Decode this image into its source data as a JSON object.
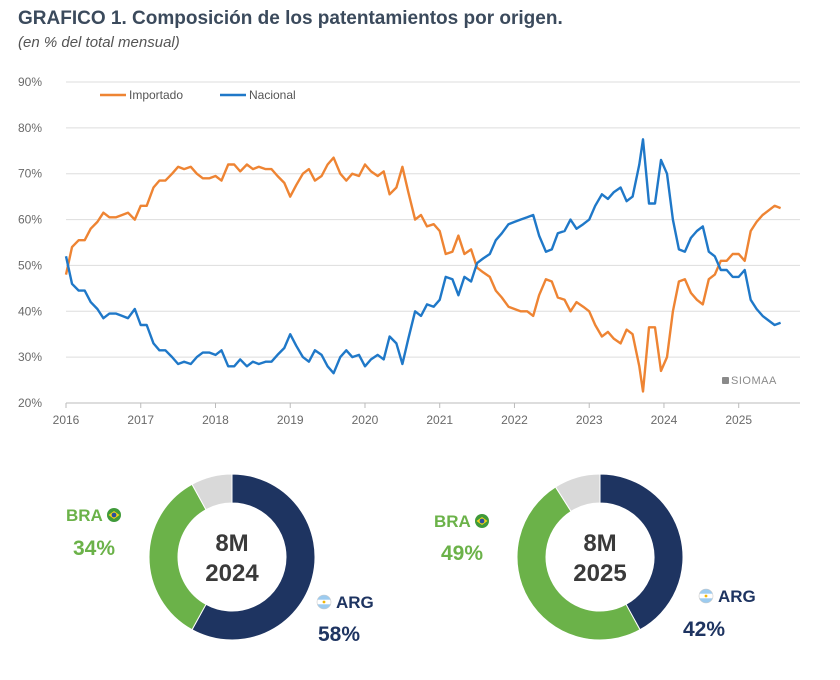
{
  "header": {
    "title": "GRAFICO 1. Composición de los patentamientos por origen.",
    "subtitle": "(en % del total mensual)"
  },
  "watermark": "SIOMAA",
  "colors": {
    "importado": "#ee8433",
    "nacional": "#1f78c8",
    "bra": "#6bb249",
    "arg": "#1e3461",
    "otros": "#d9d9d9",
    "grid": "#dddddd"
  },
  "chart_data": [
    {
      "type": "line",
      "title": "GRAFICO 1. Composición de los patentamientos por origen.",
      "subtitle": "(en % del total mensual)",
      "ylim": [
        20,
        90
      ],
      "y_ticks": [
        "20%",
        "30%",
        "40%",
        "50%",
        "60%",
        "70%",
        "80%",
        "90%"
      ],
      "x_ticks": [
        "2016",
        "2017",
        "2018",
        "2019",
        "2020",
        "2021",
        "2022",
        "2023",
        "2024",
        "2025"
      ],
      "grid": true,
      "legend_position": "top-left",
      "series": [
        {
          "name": "Importado",
          "points": [
            [
              2016.0,
              48
            ],
            [
              2016.08,
              54
            ],
            [
              2016.17,
              55.5
            ],
            [
              2016.25,
              55.5
            ],
            [
              2016.33,
              58
            ],
            [
              2016.42,
              59.5
            ],
            [
              2016.5,
              61.5
            ],
            [
              2016.58,
              60.5
            ],
            [
              2016.67,
              60.5
            ],
            [
              2016.75,
              61
            ],
            [
              2016.83,
              61.5
            ],
            [
              2016.92,
              60
            ],
            [
              2017.0,
              63
            ],
            [
              2017.08,
              63
            ],
            [
              2017.17,
              67
            ],
            [
              2017.25,
              68.5
            ],
            [
              2017.33,
              68.5
            ],
            [
              2017.42,
              70
            ],
            [
              2017.5,
              71.5
            ],
            [
              2017.58,
              71
            ],
            [
              2017.67,
              71.5
            ],
            [
              2017.75,
              70
            ],
            [
              2017.83,
              69
            ],
            [
              2017.92,
              69
            ],
            [
              2018.0,
              69.5
            ],
            [
              2018.08,
              68.5
            ],
            [
              2018.17,
              72
            ],
            [
              2018.25,
              72
            ],
            [
              2018.33,
              70.5
            ],
            [
              2018.42,
              72
            ],
            [
              2018.5,
              71
            ],
            [
              2018.58,
              71.5
            ],
            [
              2018.67,
              71
            ],
            [
              2018.75,
              71
            ],
            [
              2018.83,
              69.5
            ],
            [
              2018.92,
              68
            ],
            [
              2019.0,
              65
            ],
            [
              2019.08,
              67.5
            ],
            [
              2019.17,
              70
            ],
            [
              2019.25,
              71
            ],
            [
              2019.33,
              68.5
            ],
            [
              2019.42,
              69.5
            ],
            [
              2019.5,
              72
            ],
            [
              2019.58,
              73.5
            ],
            [
              2019.67,
              70
            ],
            [
              2019.75,
              68.5
            ],
            [
              2019.83,
              70
            ],
            [
              2019.92,
              69.5
            ],
            [
              2020.0,
              72
            ],
            [
              2020.08,
              70.5
            ],
            [
              2020.17,
              69.5
            ],
            [
              2020.25,
              70.5
            ],
            [
              2020.33,
              65.5
            ],
            [
              2020.42,
              67
            ],
            [
              2020.5,
              71.5
            ],
            [
              2020.58,
              66
            ],
            [
              2020.67,
              60
            ],
            [
              2020.75,
              61
            ],
            [
              2020.83,
              58.5
            ],
            [
              2020.92,
              59
            ],
            [
              2021.0,
              57.5
            ],
            [
              2021.08,
              52.5
            ],
            [
              2021.17,
              53
            ],
            [
              2021.25,
              56.5
            ],
            [
              2021.33,
              52.5
            ],
            [
              2021.42,
              53.5
            ],
            [
              2021.5,
              49.5
            ],
            [
              2021.58,
              48.5
            ],
            [
              2021.67,
              47.5
            ],
            [
              2021.75,
              44.5
            ],
            [
              2021.83,
              43
            ],
            [
              2021.92,
              41
            ],
            [
              2022.0,
              40.5
            ],
            [
              2022.08,
              40
            ],
            [
              2022.17,
              40
            ],
            [
              2022.25,
              39
            ],
            [
              2022.33,
              43.5
            ],
            [
              2022.42,
              47
            ],
            [
              2022.5,
              46.5
            ],
            [
              2022.58,
              43
            ],
            [
              2022.67,
              42.5
            ],
            [
              2022.75,
              40
            ],
            [
              2022.83,
              42
            ],
            [
              2022.92,
              41
            ],
            [
              2023.0,
              40
            ],
            [
              2023.08,
              37
            ],
            [
              2023.17,
              34.5
            ],
            [
              2023.25,
              35.5
            ],
            [
              2023.33,
              34
            ],
            [
              2023.42,
              33
            ],
            [
              2023.5,
              36
            ],
            [
              2023.58,
              35
            ],
            [
              2023.67,
              28
            ],
            [
              2023.72,
              22.5
            ],
            [
              2023.8,
              36.5
            ],
            [
              2023.88,
              36.5
            ],
            [
              2023.96,
              27
            ],
            [
              2024.04,
              30
            ],
            [
              2024.12,
              40
            ],
            [
              2024.2,
              46.5
            ],
            [
              2024.28,
              47
            ],
            [
              2024.36,
              44
            ],
            [
              2024.44,
              42.5
            ],
            [
              2024.52,
              41.5
            ],
            [
              2024.6,
              47
            ],
            [
              2024.68,
              48
            ],
            [
              2024.76,
              51
            ],
            [
              2024.84,
              51
            ],
            [
              2024.92,
              52.5
            ],
            [
              2025.0,
              52.5
            ],
            [
              2025.08,
              51
            ],
            [
              2025.16,
              57.5
            ],
            [
              2025.24,
              59.5
            ],
            [
              2025.32,
              61
            ],
            [
              2025.4,
              62
            ],
            [
              2025.48,
              63
            ],
            [
              2025.56,
              62.5
            ]
          ]
        },
        {
          "name": "Nacional",
          "points": [
            [
              2016.0,
              52
            ],
            [
              2016.08,
              46
            ],
            [
              2016.17,
              44.5
            ],
            [
              2016.25,
              44.5
            ],
            [
              2016.33,
              42
            ],
            [
              2016.42,
              40.5
            ],
            [
              2016.5,
              38.5
            ],
            [
              2016.58,
              39.5
            ],
            [
              2016.67,
              39.5
            ],
            [
              2016.75,
              39
            ],
            [
              2016.83,
              38.5
            ],
            [
              2016.92,
              40.5
            ],
            [
              2017.0,
              37
            ],
            [
              2017.08,
              37
            ],
            [
              2017.17,
              33
            ],
            [
              2017.25,
              31.5
            ],
            [
              2017.33,
              31.5
            ],
            [
              2017.42,
              30
            ],
            [
              2017.5,
              28.5
            ],
            [
              2017.58,
              29
            ],
            [
              2017.67,
              28.5
            ],
            [
              2017.75,
              30
            ],
            [
              2017.83,
              31
            ],
            [
              2017.92,
              31
            ],
            [
              2018.0,
              30.5
            ],
            [
              2018.08,
              31.5
            ],
            [
              2018.17,
              28
            ],
            [
              2018.25,
              28
            ],
            [
              2018.33,
              29.5
            ],
            [
              2018.42,
              28
            ],
            [
              2018.5,
              29
            ],
            [
              2018.58,
              28.5
            ],
            [
              2018.67,
              29
            ],
            [
              2018.75,
              29
            ],
            [
              2018.83,
              30.5
            ],
            [
              2018.92,
              32
            ],
            [
              2019.0,
              35
            ],
            [
              2019.08,
              32.5
            ],
            [
              2019.17,
              30
            ],
            [
              2019.25,
              29
            ],
            [
              2019.33,
              31.5
            ],
            [
              2019.42,
              30.5
            ],
            [
              2019.5,
              28
            ],
            [
              2019.58,
              26.5
            ],
            [
              2019.67,
              30
            ],
            [
              2019.75,
              31.5
            ],
            [
              2019.83,
              30
            ],
            [
              2019.92,
              30.5
            ],
            [
              2020.0,
              28
            ],
            [
              2020.08,
              29.5
            ],
            [
              2020.17,
              30.5
            ],
            [
              2020.25,
              29.5
            ],
            [
              2020.33,
              34.5
            ],
            [
              2020.42,
              33
            ],
            [
              2020.5,
              28.5
            ],
            [
              2020.58,
              34
            ],
            [
              2020.67,
              40
            ],
            [
              2020.75,
              39
            ],
            [
              2020.83,
              41.5
            ],
            [
              2020.92,
              41
            ],
            [
              2021.0,
              42.5
            ],
            [
              2021.08,
              47.5
            ],
            [
              2021.17,
              47
            ],
            [
              2021.25,
              43.5
            ],
            [
              2021.33,
              47.5
            ],
            [
              2021.42,
              46.5
            ],
            [
              2021.5,
              50.5
            ],
            [
              2021.58,
              51.5
            ],
            [
              2021.67,
              52.5
            ],
            [
              2021.75,
              55.5
            ],
            [
              2021.83,
              57
            ],
            [
              2021.92,
              59
            ],
            [
              2022.0,
              59.5
            ],
            [
              2022.08,
              60
            ],
            [
              2022.17,
              60.5
            ],
            [
              2022.25,
              61
            ],
            [
              2022.33,
              56.5
            ],
            [
              2022.42,
              53
            ],
            [
              2022.5,
              53.5
            ],
            [
              2022.58,
              57
            ],
            [
              2022.67,
              57.5
            ],
            [
              2022.75,
              60
            ],
            [
              2022.83,
              58
            ],
            [
              2022.92,
              59
            ],
            [
              2023.0,
              60
            ],
            [
              2023.08,
              63
            ],
            [
              2023.17,
              65.5
            ],
            [
              2023.25,
              64.5
            ],
            [
              2023.33,
              66
            ],
            [
              2023.42,
              67
            ],
            [
              2023.5,
              64
            ],
            [
              2023.58,
              65
            ],
            [
              2023.67,
              72
            ],
            [
              2023.72,
              77.5
            ],
            [
              2023.8,
              63.5
            ],
            [
              2023.88,
              63.5
            ],
            [
              2023.96,
              73
            ],
            [
              2024.04,
              70
            ],
            [
              2024.12,
              60
            ],
            [
              2024.2,
              53.5
            ],
            [
              2024.28,
              53
            ],
            [
              2024.36,
              56
            ],
            [
              2024.44,
              57.5
            ],
            [
              2024.52,
              58.5
            ],
            [
              2024.6,
              53
            ],
            [
              2024.68,
              52
            ],
            [
              2024.76,
              49
            ],
            [
              2024.84,
              49
            ],
            [
              2024.92,
              47.5
            ],
            [
              2025.0,
              47.5
            ],
            [
              2025.08,
              49
            ],
            [
              2025.16,
              42.5
            ],
            [
              2025.24,
              40.5
            ],
            [
              2025.32,
              39
            ],
            [
              2025.4,
              38
            ],
            [
              2025.48,
              37
            ],
            [
              2025.56,
              37.5
            ]
          ]
        }
      ]
    },
    {
      "type": "pie",
      "center_label": [
        "8M",
        "2024"
      ],
      "slices": [
        {
          "name": "ARG",
          "value": 58,
          "label": "58%"
        },
        {
          "name": "BRA",
          "value": 34,
          "label": "34%"
        },
        {
          "name": "",
          "value": 8,
          "label": ""
        }
      ]
    },
    {
      "type": "pie",
      "center_label": [
        "8M",
        "2025"
      ],
      "slices": [
        {
          "name": "ARG",
          "value": 42,
          "label": "42%"
        },
        {
          "name": "BRA",
          "value": 49,
          "label": "49%"
        },
        {
          "name": "",
          "value": 9,
          "label": ""
        }
      ]
    }
  ]
}
